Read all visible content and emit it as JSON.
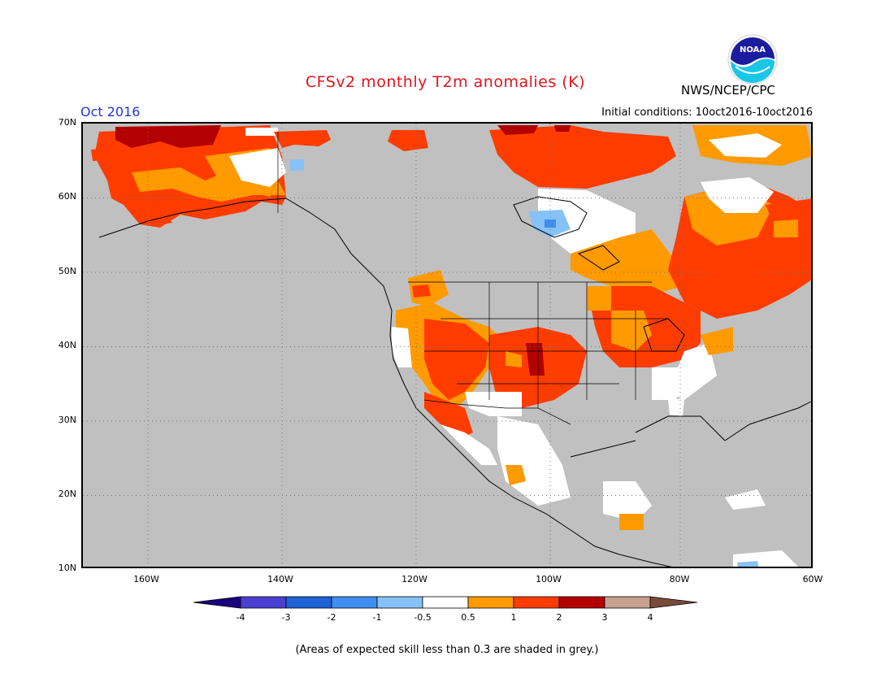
{
  "header": {
    "title": "CFSv2 monthly T2m anomalies (K)",
    "agency": "NWS/NCEP/CPC",
    "logo_text": "NOAA",
    "month": "Oct 2016",
    "initial_conditions": "Initial conditions: 10oct2016-10oct2016"
  },
  "axes": {
    "lat_labels": [
      "70N",
      "60N",
      "50N",
      "40N",
      "30N",
      "20N",
      "10N"
    ],
    "lon_labels": [
      "160W",
      "140W",
      "120W",
      "100W",
      "80W",
      "60W"
    ]
  },
  "colorbar": {
    "labels": [
      "-4",
      "-3",
      "-2",
      "-1",
      "-0.5",
      "0.5",
      "1",
      "2",
      "3",
      "4"
    ],
    "colors": [
      "#1a0080",
      "#4b3fd1",
      "#1f62d6",
      "#3f8ff0",
      "#86c2f5",
      "#ffffff",
      "#ff9a00",
      "#ff3c00",
      "#b30000",
      "#c8a090",
      "#7a4a3a"
    ],
    "note": "(Areas of expected skill less than 0.3 are shaded in grey.)"
  },
  "colors": {
    "title": "#e0141e",
    "month": "#2233cc",
    "grey_skill": "#c0c0c0"
  }
}
